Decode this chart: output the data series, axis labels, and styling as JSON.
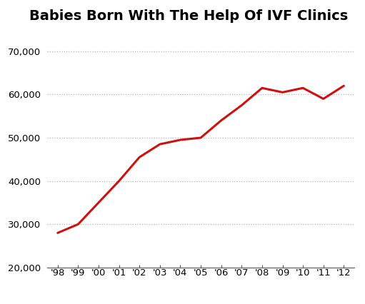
{
  "title": "Babies Born With The Help Of IVF Clinics",
  "x_labels": [
    "'98",
    "'99",
    "'00",
    "'01",
    "'02",
    "'03",
    "'04",
    "'05",
    "'06",
    "'07",
    "'08",
    "'09",
    "'10",
    "'11",
    "'12"
  ],
  "x_values": [
    0,
    1,
    2,
    3,
    4,
    5,
    6,
    7,
    8,
    9,
    10,
    11,
    12,
    13,
    14
  ],
  "y_values": [
    28000,
    30000,
    35000,
    40000,
    45500,
    48500,
    49500,
    50000,
    54000,
    57500,
    61500,
    60500,
    61500,
    59000,
    62000
  ],
  "line_color": "#cc1111",
  "line_width": 2.2,
  "ylim": [
    20000,
    72000
  ],
  "yticks": [
    20000,
    30000,
    40000,
    50000,
    60000,
    70000
  ],
  "grid_color": "#b0b0b0",
  "background_color": "#ffffff",
  "title_fontsize": 14,
  "tick_fontsize": 9.5
}
